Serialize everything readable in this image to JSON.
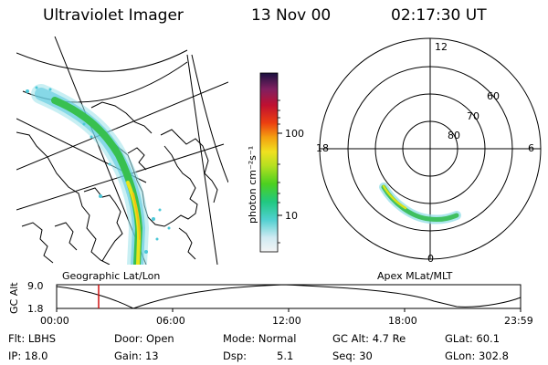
{
  "header": {
    "title": "Ultraviolet Imager",
    "date": "13 Nov 00",
    "time": "02:17:30 UT"
  },
  "colorbar": {
    "label": "photon cm⁻²s⁻¹",
    "ticks": [
      "100",
      "10"
    ]
  },
  "left_panel": {
    "caption": "Geographic Lat/Lon"
  },
  "right_panel": {
    "caption": "Apex MLat/MLT",
    "mlt_labels": {
      "top": "12",
      "right": "6",
      "bottom": "0",
      "left": "18"
    },
    "lat_labels": [
      "60",
      "70",
      "80"
    ]
  },
  "timeline": {
    "ylabel": "GC Alt",
    "yticks": [
      "9.0",
      "1.8"
    ],
    "xticks": [
      "00:00",
      "06:00",
      "12:00",
      "18:00",
      "23:59"
    ]
  },
  "info": {
    "filter": "Flt: LBHS",
    "ip": "IP: 18.0",
    "door": "Door: Open",
    "gain": "Gain: 13",
    "mode": "Mode: Normal",
    "dsp_label": "Dsp:",
    "dsp_value": "5.1",
    "gcalt": "GC Alt: 4.7 Re",
    "seq": "Seq: 30",
    "glat": "GLat: 60.1",
    "glon": "GLon: 302.8"
  },
  "colors": {
    "aurora_green": "#33cc33",
    "aurora_yellow": "#e8e81a",
    "aurora_cyan": "#33cccc",
    "marker_red": "#d01010"
  }
}
